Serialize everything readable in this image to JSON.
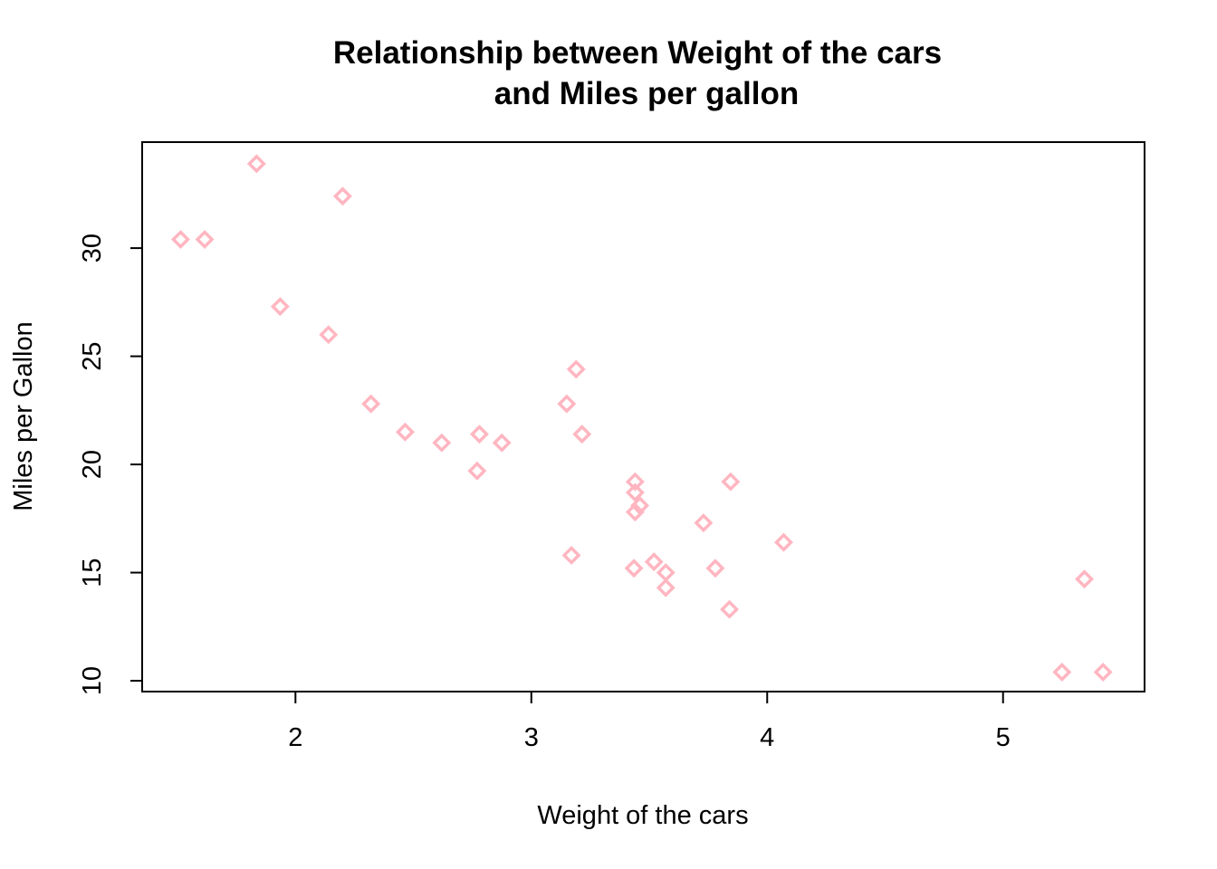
{
  "chart_data": {
    "type": "scatter",
    "title_lines": [
      "Relationship between Weight of the cars",
      "and Miles per gallon"
    ],
    "xlabel": "Weight of the cars",
    "ylabel": "Miles per Gallon",
    "xlim": [
      1.35,
      5.6
    ],
    "ylim": [
      9.5,
      34.9
    ],
    "x_ticks": [
      2,
      3,
      4,
      5
    ],
    "y_ticks": [
      10,
      15,
      20,
      25,
      30
    ],
    "grid": false,
    "legend": "none",
    "marker": "diamond-open",
    "color": "#FFB6C1",
    "points": [
      {
        "x": 2.62,
        "y": 21.0
      },
      {
        "x": 2.875,
        "y": 21.0
      },
      {
        "x": 2.32,
        "y": 22.8
      },
      {
        "x": 3.215,
        "y": 21.4
      },
      {
        "x": 3.44,
        "y": 18.7
      },
      {
        "x": 3.46,
        "y": 18.1
      },
      {
        "x": 3.57,
        "y": 14.3
      },
      {
        "x": 3.19,
        "y": 24.4
      },
      {
        "x": 3.15,
        "y": 22.8
      },
      {
        "x": 3.44,
        "y": 19.2
      },
      {
        "x": 3.44,
        "y": 17.8
      },
      {
        "x": 4.07,
        "y": 16.4
      },
      {
        "x": 3.73,
        "y": 17.3
      },
      {
        "x": 3.78,
        "y": 15.2
      },
      {
        "x": 5.25,
        "y": 10.4
      },
      {
        "x": 5.424,
        "y": 10.4
      },
      {
        "x": 5.345,
        "y": 14.7
      },
      {
        "x": 2.2,
        "y": 32.4
      },
      {
        "x": 1.615,
        "y": 30.4
      },
      {
        "x": 1.835,
        "y": 33.9
      },
      {
        "x": 2.465,
        "y": 21.5
      },
      {
        "x": 3.52,
        "y": 15.5
      },
      {
        "x": 3.435,
        "y": 15.2
      },
      {
        "x": 3.84,
        "y": 13.3
      },
      {
        "x": 3.845,
        "y": 19.2
      },
      {
        "x": 1.935,
        "y": 27.3
      },
      {
        "x": 2.14,
        "y": 26.0
      },
      {
        "x": 1.513,
        "y": 30.4
      },
      {
        "x": 3.17,
        "y": 15.8
      },
      {
        "x": 2.77,
        "y": 19.7
      },
      {
        "x": 3.57,
        "y": 15.0
      },
      {
        "x": 2.78,
        "y": 21.4
      }
    ]
  }
}
